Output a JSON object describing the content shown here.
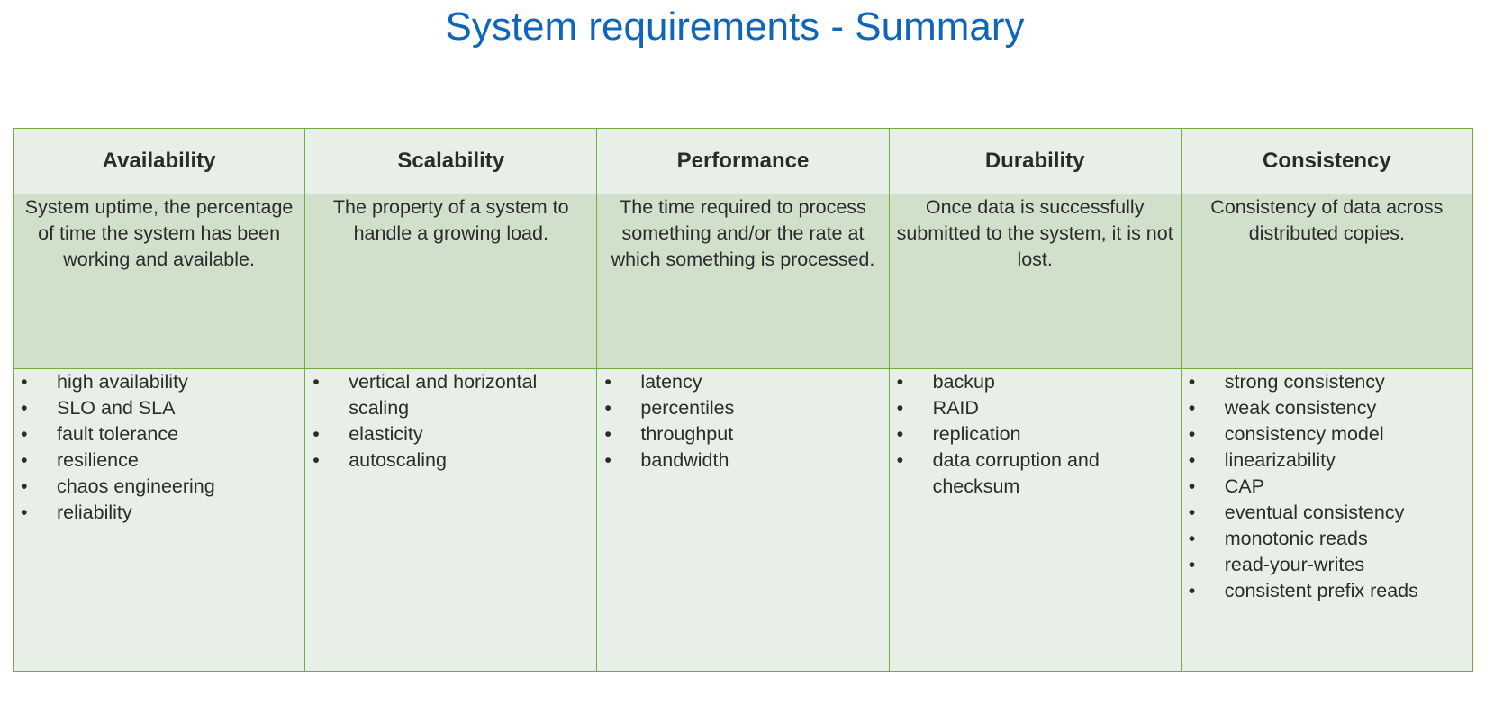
{
  "title": "System requirements - Summary",
  "columns": [
    {
      "heading": "Availability",
      "description": "System uptime, the percentage of time the system has been working and available.",
      "items": [
        "high availability",
        "SLO and SLA",
        "fault tolerance",
        "resilience",
        "chaos engineering",
        "reliability"
      ]
    },
    {
      "heading": "Scalability",
      "description": "The property of a system to handle a growing load.",
      "items": [
        "vertical and horizontal scaling",
        "elasticity",
        "autoscaling"
      ]
    },
    {
      "heading": "Performance",
      "description": "The time required to process something and/or the rate at which something is processed.",
      "items": [
        "latency",
        "percentiles",
        "throughput",
        "bandwidth"
      ]
    },
    {
      "heading": "Durability",
      "description": "Once data is successfully submitted to the system, it is not lost.",
      "items": [
        "backup",
        "RAID",
        "replication",
        "data corruption and checksum"
      ]
    },
    {
      "heading": "Consistency",
      "description": "Consistency of data across distributed copies.",
      "items": [
        "strong consistency",
        "weak consistency",
        "consistency model",
        "linearizability",
        "CAP",
        "eventual consistency",
        "monotonic reads",
        "read-your-writes",
        "consistent prefix reads"
      ]
    }
  ],
  "colors": {
    "title": "#0f65b9",
    "border": "#70ad47",
    "header_fill": "#e7efe6",
    "description_fill": "#d0e0cb",
    "list_fill": "#e7efe6",
    "text": "#2b2b2b"
  }
}
